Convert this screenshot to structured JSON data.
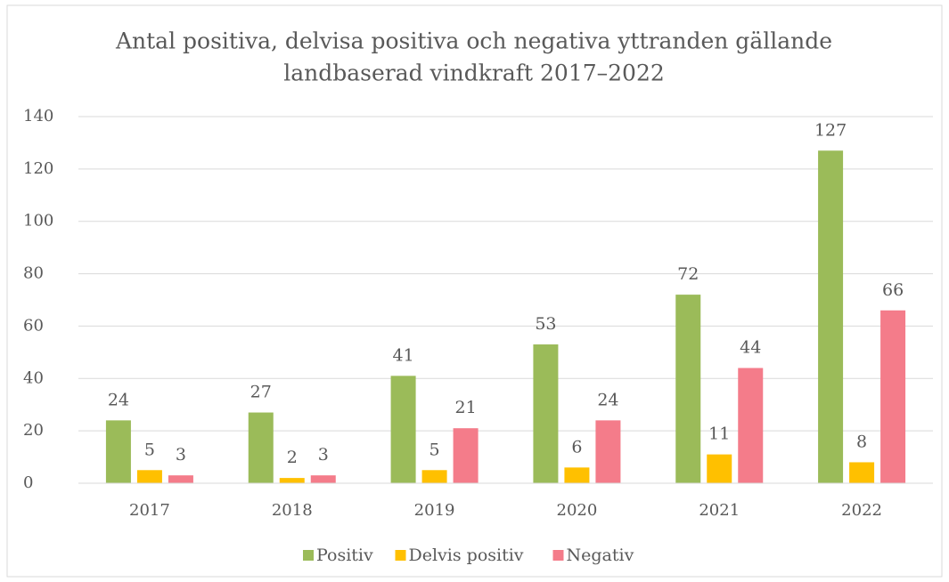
{
  "chart_data": {
    "type": "bar",
    "title": [
      "Antal positiva, delvisa positiva och negativa yttranden gällande",
      "landbaserad vindkraft 2017–2022"
    ],
    "categories": [
      "2017",
      "2018",
      "2019",
      "2020",
      "2021",
      "2022"
    ],
    "series": [
      {
        "name": "Positiv",
        "color": "#9bbb59",
        "values": [
          24,
          27,
          41,
          53,
          72,
          127
        ]
      },
      {
        "name": "Delvis positiv",
        "color": "#ffc000",
        "values": [
          5,
          2,
          5,
          6,
          11,
          8
        ]
      },
      {
        "name": "Negativ",
        "color": "#f47c8a",
        "values": [
          3,
          3,
          21,
          24,
          44,
          66
        ]
      }
    ],
    "ylim": [
      0,
      140
    ],
    "yticks": [
      0,
      20,
      40,
      60,
      80,
      100,
      120,
      140
    ],
    "grid": true,
    "legend": "bottom"
  }
}
